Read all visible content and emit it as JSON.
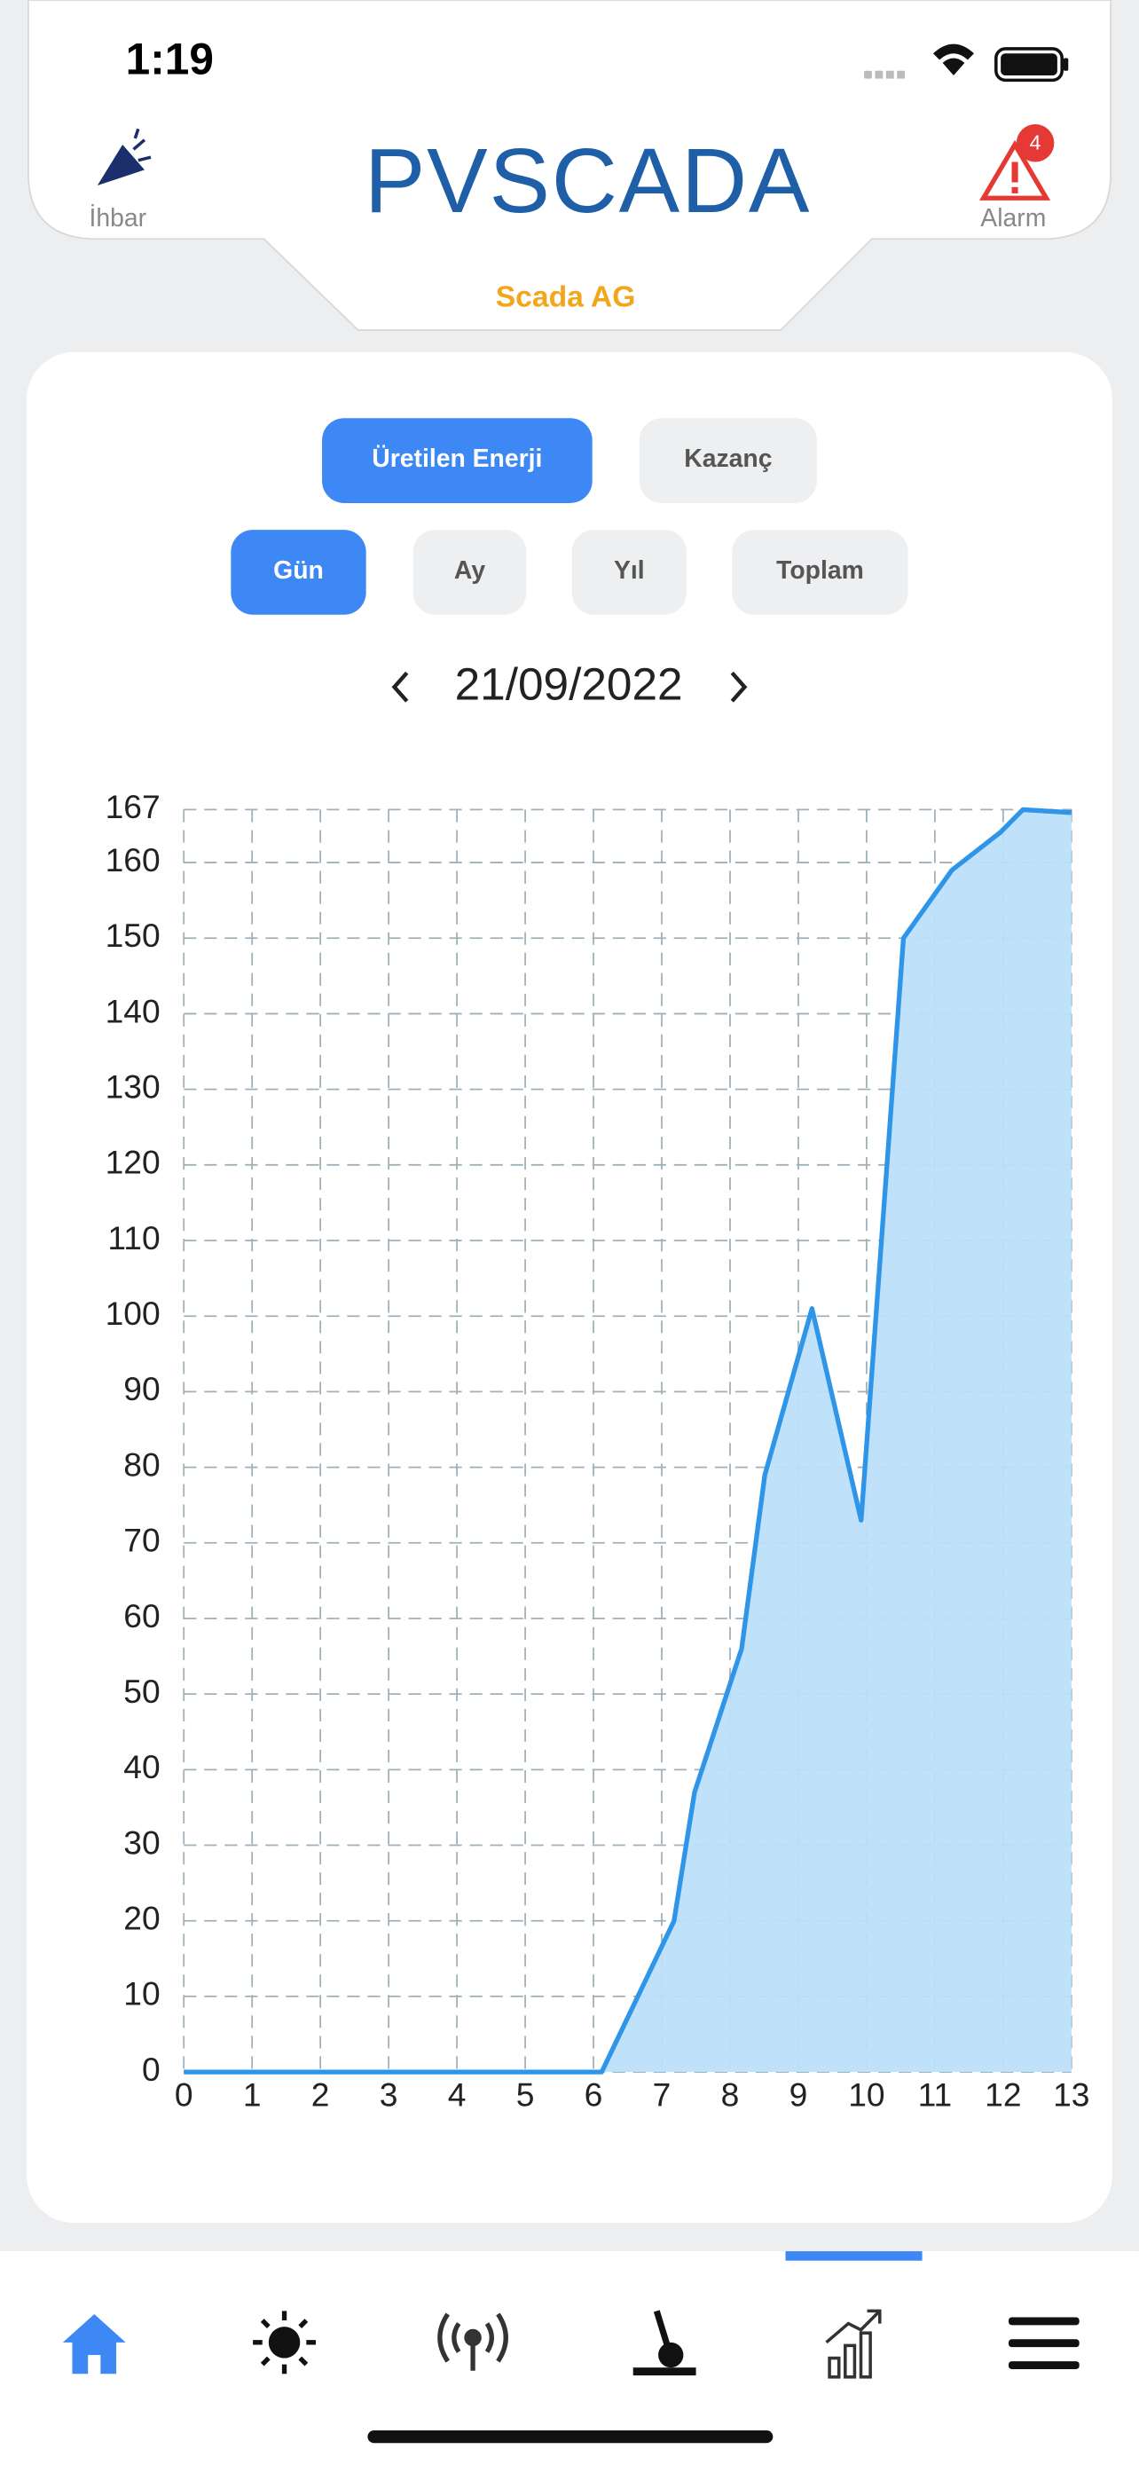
{
  "status_bar": {
    "time": "1:19"
  },
  "header": {
    "left_label": "İhbar",
    "logo": "PVSCADA",
    "right_label": "Alarm",
    "alarm_badge": "4",
    "site": "Scada AG"
  },
  "tabs": [
    "Üretilen Enerji",
    "Kazanç"
  ],
  "periods": [
    "Gün",
    "Ay",
    "Yıl",
    "Toplam"
  ],
  "date": "21/09/2022",
  "chart_data": {
    "type": "area",
    "color": "#2f95e8",
    "fill": "#bcdff9",
    "grid": true,
    "x": [
      0,
      6.12,
      7.18,
      7.48,
      8.17,
      8.51,
      9.2,
      9.92,
      10.54,
      11.25,
      11.96,
      12.29,
      13
    ],
    "values": [
      0,
      0,
      20,
      37,
      56,
      79,
      101,
      73,
      150,
      159,
      164,
      167,
      166.6
    ],
    "xlim": [
      0,
      13
    ],
    "xticks": [
      0,
      1,
      2,
      3,
      4,
      5,
      6,
      7,
      8,
      9,
      10,
      11,
      12,
      13
    ],
    "ylim": [
      0,
      167
    ],
    "yticks": [
      0,
      10,
      20,
      30,
      40,
      50,
      60,
      70,
      80,
      90,
      100,
      110,
      120,
      130,
      140,
      150,
      160,
      167
    ]
  }
}
